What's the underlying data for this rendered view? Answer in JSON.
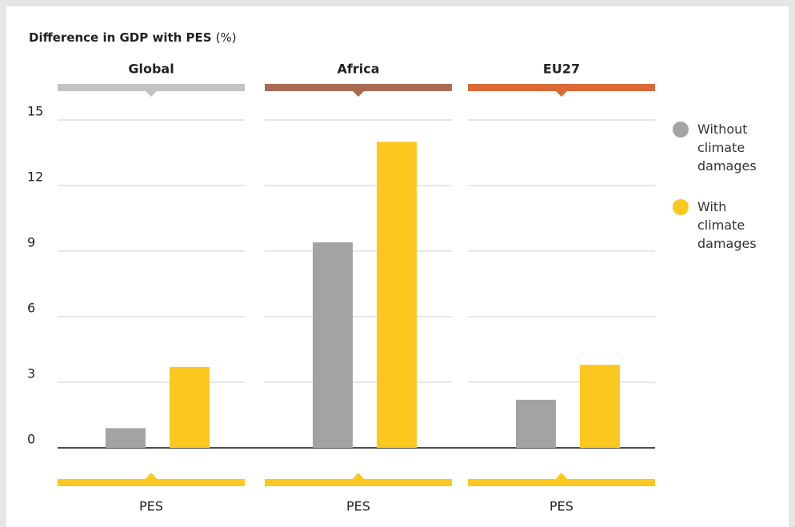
{
  "chart_data": {
    "type": "bar",
    "title": "Difference in GDP with PES",
    "unit": "(%)",
    "panels": [
      {
        "name": "Global",
        "color": "#c2c2c2"
      },
      {
        "name": "Africa",
        "color": "#a86a52"
      },
      {
        "name": "EU27",
        "color": "#dc6a38"
      }
    ],
    "xlabel": "PES",
    "series": [
      {
        "name": "Without climate damages",
        "color": "#a3a3a1",
        "values": [
          0.9,
          9.4,
          2.2
        ]
      },
      {
        "name": "With climate damages",
        "color": "#fcc81f",
        "values": [
          3.7,
          14.0,
          3.8
        ]
      }
    ],
    "ylim": [
      0,
      15
    ],
    "yticks": [
      0,
      3,
      6,
      9,
      12,
      15
    ],
    "grid": true
  }
}
